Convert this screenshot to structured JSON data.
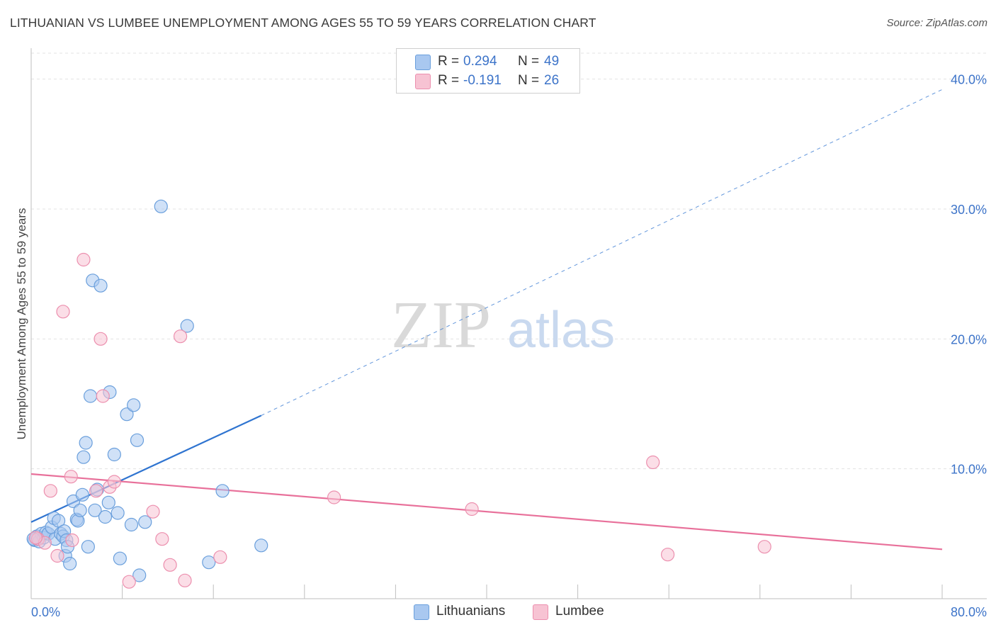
{
  "title": "LITHUANIAN VS LUMBEE UNEMPLOYMENT AMONG AGES 55 TO 59 YEARS CORRELATION CHART",
  "source": "Source: ZipAtlas.com",
  "watermark": {
    "zip": "ZIP",
    "atlas": "atlas"
  },
  "legend_stats": [
    {
      "r_label": "R =",
      "r_value": "0.294",
      "n_label": "N =",
      "n_value": "49"
    },
    {
      "r_label": "R =",
      "r_value": "-0.191",
      "n_label": "N =",
      "n_value": "26"
    }
  ],
  "colors": {
    "lithuanian_fill": "#a9c8f0",
    "lithuanian_stroke": "#6a9fdc",
    "lithuanian_line": "#2f74d0",
    "lumbee_fill": "#f7c3d3",
    "lumbee_stroke": "#ec8fae",
    "lumbee_line": "#e8709a",
    "tick": "#3d74c9"
  },
  "chart_data": {
    "type": "scatter",
    "title": "LITHUANIAN VS LUMBEE UNEMPLOYMENT AMONG AGES 55 TO 59 YEARS CORRELATION CHART",
    "xlabel": "",
    "ylabel": "Unemployment Among Ages 55 to 59 years",
    "xlim": [
      0,
      80
    ],
    "ylim": [
      0,
      42
    ],
    "x_tick_labels": [
      "0.0%",
      "80.0%"
    ],
    "y_ticks": [
      10,
      20,
      30,
      40
    ],
    "y_tick_labels": [
      "10.0%",
      "20.0%",
      "30.0%",
      "40.0%"
    ],
    "grid": true,
    "legend_placement": "bottom-center",
    "series": [
      {
        "name": "Lithuanians",
        "r": 0.294,
        "n": 49,
        "trend": {
          "x0": 0,
          "y0": 5.9,
          "x1": 20.2,
          "y1": 14.1,
          "dashed_to_x": 80,
          "dashed_to_y": 39.2
        },
        "points": [
          [
            0.3,
            4.5
          ],
          [
            0.5,
            4.8
          ],
          [
            0.7,
            4.4
          ],
          [
            0.9,
            5.0
          ],
          [
            1.1,
            4.7
          ],
          [
            1.3,
            5.1
          ],
          [
            1.5,
            5.0
          ],
          [
            1.8,
            5.5
          ],
          [
            2.0,
            6.2
          ],
          [
            2.1,
            4.6
          ],
          [
            2.4,
            6.0
          ],
          [
            2.6,
            5.0
          ],
          [
            2.8,
            4.8
          ],
          [
            2.9,
            5.2
          ],
          [
            3.0,
            3.3
          ],
          [
            3.1,
            4.5
          ],
          [
            3.2,
            4.0
          ],
          [
            3.4,
            2.7
          ],
          [
            3.7,
            7.5
          ],
          [
            4.0,
            6.1
          ],
          [
            4.1,
            6.0
          ],
          [
            4.3,
            6.8
          ],
          [
            4.5,
            8.0
          ],
          [
            4.6,
            10.9
          ],
          [
            4.8,
            12.0
          ],
          [
            5.0,
            4.0
          ],
          [
            5.2,
            15.6
          ],
          [
            5.4,
            24.5
          ],
          [
            5.6,
            6.8
          ],
          [
            5.8,
            8.4
          ],
          [
            6.1,
            24.1
          ],
          [
            6.5,
            6.3
          ],
          [
            6.8,
            7.4
          ],
          [
            6.9,
            15.9
          ],
          [
            7.3,
            11.1
          ],
          [
            7.6,
            6.6
          ],
          [
            7.8,
            3.1
          ],
          [
            8.4,
            14.2
          ],
          [
            8.8,
            5.7
          ],
          [
            9.0,
            14.9
          ],
          [
            9.3,
            12.2
          ],
          [
            9.5,
            1.8
          ],
          [
            10.0,
            5.9
          ],
          [
            11.4,
            30.2
          ],
          [
            13.7,
            21.0
          ],
          [
            15.6,
            2.8
          ],
          [
            16.8,
            8.3
          ],
          [
            20.2,
            4.1
          ],
          [
            0.2,
            4.6
          ]
        ]
      },
      {
        "name": "Lumbee",
        "r": -0.191,
        "n": 26,
        "trend": {
          "x0": 0,
          "y0": 9.6,
          "x1": 80,
          "y1": 3.8
        },
        "points": [
          [
            0.6,
            4.6
          ],
          [
            1.2,
            4.3
          ],
          [
            1.7,
            8.3
          ],
          [
            2.3,
            3.3
          ],
          [
            2.8,
            22.1
          ],
          [
            3.5,
            9.4
          ],
          [
            3.6,
            4.5
          ],
          [
            4.6,
            26.1
          ],
          [
            5.7,
            8.3
          ],
          [
            6.1,
            20.0
          ],
          [
            6.3,
            15.6
          ],
          [
            6.9,
            8.6
          ],
          [
            7.3,
            9.0
          ],
          [
            8.6,
            1.3
          ],
          [
            10.7,
            6.7
          ],
          [
            11.5,
            4.6
          ],
          [
            12.2,
            2.6
          ],
          [
            13.1,
            20.2
          ],
          [
            13.5,
            1.4
          ],
          [
            16.6,
            3.2
          ],
          [
            26.6,
            7.8
          ],
          [
            38.7,
            6.9
          ],
          [
            54.6,
            10.5
          ],
          [
            55.9,
            3.4
          ],
          [
            64.4,
            4.0
          ],
          [
            0.4,
            4.7
          ]
        ]
      }
    ]
  }
}
